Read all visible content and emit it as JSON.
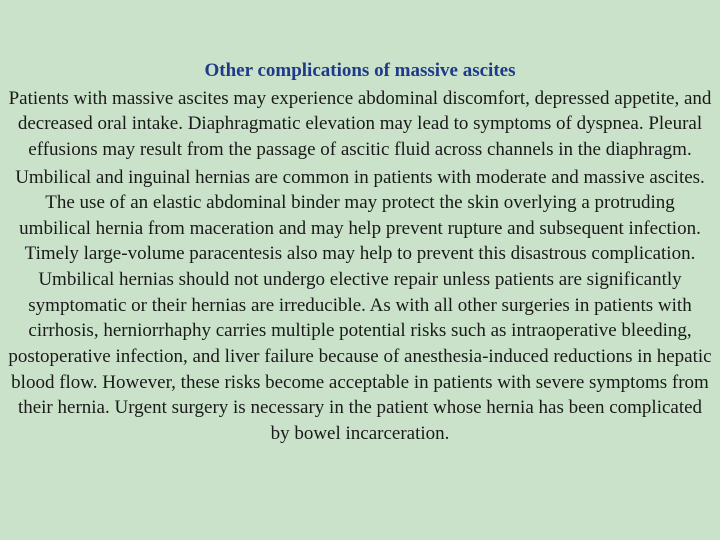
{
  "background_color": "#c9e2c9",
  "title_color": "#1f3a8a",
  "body_color": "#1a1a1a",
  "font_family": "Times New Roman",
  "title_fontsize": 19,
  "body_fontsize": 19,
  "title": "Other complications of massive ascites",
  "paragraphs": [
    "Patients with massive ascites may experience abdominal discomfort, depressed appetite, and decreased oral intake. Diaphragmatic elevation may lead to symptoms of dyspnea. Pleural effusions may result from the passage of ascitic fluid across channels in the diaphragm.",
    "Umbilical and inguinal hernias are common in patients with moderate and massive ascites. The use of an elastic abdominal binder may protect the skin overlying a protruding umbilical hernia from maceration and may help prevent rupture and subsequent infection. Timely large-volume paracentesis also may help to prevent this disastrous complication. Umbilical hernias should not undergo elective repair unless patients are significantly symptomatic or their hernias are irreducible. As with all other surgeries in patients with cirrhosis, herniorrhaphy carries multiple potential risks such as intraoperative bleeding, postoperative infection, and liver failure because of anesthesia-induced reductions in hepatic blood flow. However, these risks become acceptable in patients with severe symptoms from their hernia. Urgent surgery is necessary in the patient whose hernia has been complicated by bowel incarceration."
  ]
}
